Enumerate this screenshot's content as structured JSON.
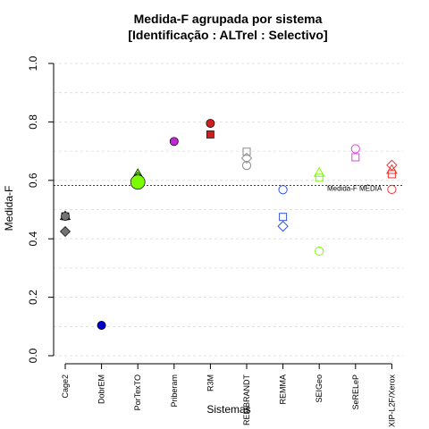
{
  "chart_data": {
    "type": "scatter",
    "title": "Medida-F agrupada por sistema",
    "subtitle": "[Identificação : ALTrel : Selectivo]",
    "xlabel": "Sistemas",
    "ylabel": "Medida-F",
    "ylim": [
      0,
      1
    ],
    "yticks": [
      "0.0",
      "0.2",
      "0.4",
      "0.6",
      "0.8",
      "1.0"
    ],
    "grid": "horizontal dashed",
    "categories": [
      "Cage2",
      "DobrEM",
      "PorTexTO",
      "Priberam",
      "R3M",
      "REMBRANDT",
      "REMMA",
      "SEIGeo",
      "SeRELeP",
      "XIP-L2F/Xerox"
    ],
    "reference_line": {
      "label": "Medida-F MÉDIA",
      "value": 0.583
    },
    "colors": {
      "Cage2": "#737373",
      "DobrEM": "#0000cd",
      "PorTexTO": "#7cfc00",
      "Priberam": "#c026d3",
      "R3M": "#cc1f1f",
      "REMBRANDT": "#8a8a8a",
      "REMMA": "#3355dd",
      "SEIGeo": "#7cfc00",
      "SeRELeP": "#dd44dd",
      "XIP-L2F/Xerox": "#ee3333"
    },
    "points": [
      {
        "system": "Cage2",
        "value": 0.477,
        "shape": "square",
        "filled": true
      },
      {
        "system": "Cage2",
        "value": 0.477,
        "shape": "triangle",
        "filled": true
      },
      {
        "system": "Cage2",
        "value": 0.477,
        "shape": "circle",
        "filled": true
      },
      {
        "system": "Cage2",
        "value": 0.425,
        "shape": "diamond",
        "filled": true
      },
      {
        "system": "DobrEM",
        "value": 0.104,
        "shape": "circle",
        "filled": true
      },
      {
        "system": "PorTexTO",
        "value": 0.621,
        "shape": "triangle",
        "filled": true
      },
      {
        "system": "PorTexTO",
        "value": 0.603,
        "shape": "square",
        "filled": true
      },
      {
        "system": "PorTexTO",
        "value": 0.61,
        "shape": "diamond",
        "filled": true
      },
      {
        "system": "PorTexTO",
        "value": 0.594,
        "shape": "circle",
        "filled": true,
        "large": true
      },
      {
        "system": "Priberam",
        "value": 0.733,
        "shape": "circle",
        "filled": true
      },
      {
        "system": "R3M",
        "value": 0.795,
        "shape": "circle",
        "filled": true
      },
      {
        "system": "R3M",
        "value": 0.757,
        "shape": "square",
        "filled": true
      },
      {
        "system": "REMBRANDT",
        "value": 0.698,
        "shape": "square",
        "filled": false
      },
      {
        "system": "REMBRANDT",
        "value": 0.676,
        "shape": "diamond",
        "filled": false
      },
      {
        "system": "REMBRANDT",
        "value": 0.651,
        "shape": "circle",
        "filled": false
      },
      {
        "system": "REMMA",
        "value": 0.568,
        "shape": "circle",
        "filled": false
      },
      {
        "system": "REMMA",
        "value": 0.475,
        "shape": "square",
        "filled": false
      },
      {
        "system": "REMMA",
        "value": 0.443,
        "shape": "diamond",
        "filled": false
      },
      {
        "system": "SEIGeo",
        "value": 0.625,
        "shape": "triangle",
        "filled": false
      },
      {
        "system": "SEIGeo",
        "value": 0.609,
        "shape": "square",
        "filled": false
      },
      {
        "system": "SEIGeo",
        "value": 0.358,
        "shape": "circle",
        "filled": false
      },
      {
        "system": "SeRELeP",
        "value": 0.708,
        "shape": "circle",
        "filled": false
      },
      {
        "system": "SeRELeP",
        "value": 0.679,
        "shape": "square",
        "filled": false
      },
      {
        "system": "XIP-L2F/Xerox",
        "value": 0.652,
        "shape": "diamond",
        "filled": false
      },
      {
        "system": "XIP-L2F/Xerox",
        "value": 0.635,
        "shape": "triangle",
        "filled": false
      },
      {
        "system": "XIP-L2F/Xerox",
        "value": 0.621,
        "shape": "square",
        "filled": false
      },
      {
        "system": "XIP-L2F/Xerox",
        "value": 0.569,
        "shape": "circle",
        "filled": false
      }
    ]
  }
}
